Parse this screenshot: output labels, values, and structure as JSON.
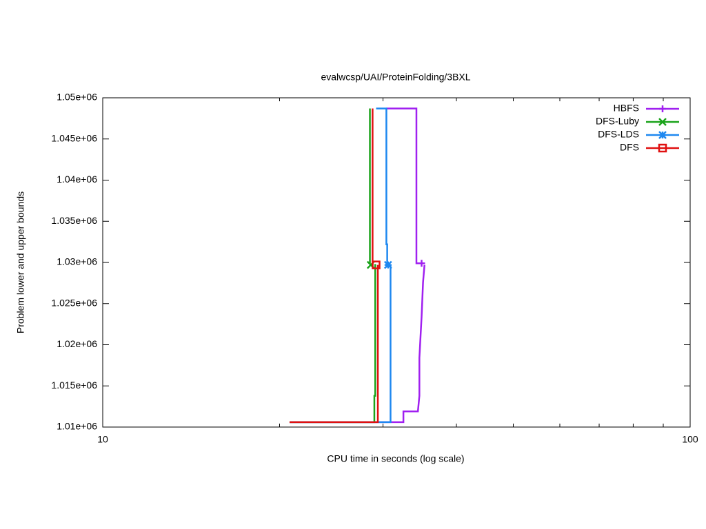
{
  "chart_data": {
    "type": "line",
    "title": "evalwcsp/UAI/ProteinFolding/3BXL",
    "x_label": "CPU time in seconds (log scale)",
    "y_label": "Problem lower and upper bounds",
    "x_log": true,
    "xlim": [
      10,
      100
    ],
    "xticks": [
      10,
      100
    ],
    "xminor_ticks": [
      20,
      30,
      40,
      50,
      60,
      70,
      80,
      90
    ],
    "ylim": [
      1010000,
      1050000
    ],
    "yticks": [
      {
        "value": 1010000,
        "label": "1.01e+06"
      },
      {
        "value": 1015000,
        "label": "1.015e+06"
      },
      {
        "value": 1020000,
        "label": "1.02e+06"
      },
      {
        "value": 1025000,
        "label": "1.025e+06"
      },
      {
        "value": 1030000,
        "label": "1.03e+06"
      },
      {
        "value": 1035000,
        "label": "1.035e+06"
      },
      {
        "value": 1040000,
        "label": "1.04e+06"
      },
      {
        "value": 1045000,
        "label": "1.045e+06"
      },
      {
        "value": 1050000,
        "label": "1.05e+06"
      }
    ],
    "grid": false,
    "legend": "top-right",
    "series": [
      {
        "name": "HBFS",
        "color": "#a020f0",
        "marker": "plus",
        "x": [
          20.8,
          32.5,
          32.5,
          34.4,
          34.6,
          34.6,
          34.9,
          35.1,
          35.3,
          null,
          30.4,
          34.2,
          34.2,
          35.3
        ],
        "values": [
          1010600,
          1010600,
          1011900,
          1011900,
          1013800,
          1018400,
          1023400,
          1027600,
          1029700,
          null,
          1048700,
          1048700,
          1029900,
          1029900
        ],
        "marker_point": [
          34.9,
          1029900
        ]
      },
      {
        "name": "DFS-Luby",
        "color": "#1aa31a",
        "marker": "cross",
        "x": [
          28.5,
          28.5,
          null,
          20.8,
          29.0,
          29.0,
          29.1,
          29.1
        ],
        "values": [
          1048700,
          1029800,
          null,
          1010600,
          1010600,
          1013800,
          1013800,
          1029800
        ],
        "marker_point": [
          28.6,
          1029700
        ]
      },
      {
        "name": "DFS-LDS",
        "color": "#1e88f0",
        "marker": "star",
        "x": [
          29.2,
          30.4,
          30.4,
          30.5,
          30.5,
          null,
          20.8,
          30.9,
          30.9
        ],
        "values": [
          1048700,
          1048700,
          1032200,
          1032200,
          1029700,
          null,
          1010600,
          1010600,
          1029700
        ],
        "marker_point": [
          30.6,
          1029700
        ]
      },
      {
        "name": "DFS",
        "color": "#e01010",
        "marker": "square",
        "x": [
          28.8,
          28.8,
          null,
          20.8,
          29.4,
          29.4
        ],
        "values": [
          1048700,
          1029700,
          null,
          1010600,
          1010600,
          1029700
        ],
        "marker_point": [
          29.2,
          1029700
        ]
      }
    ]
  }
}
